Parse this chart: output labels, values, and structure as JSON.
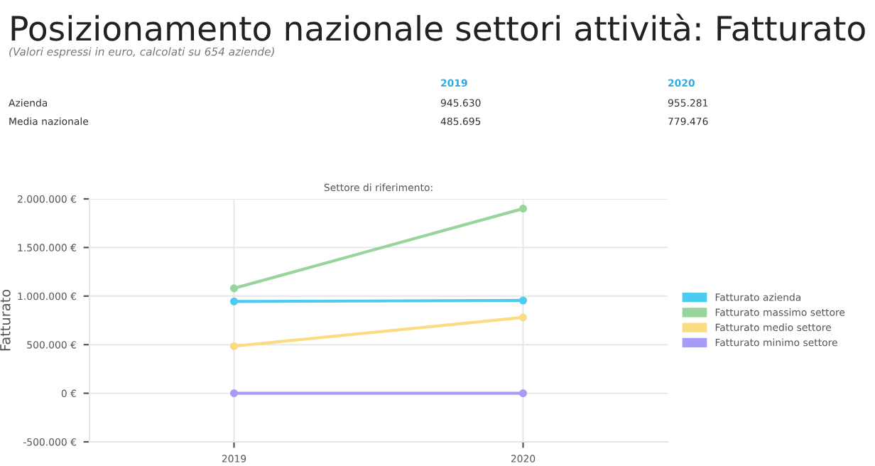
{
  "chart_data": {
    "type": "line",
    "title": "Settore di riferimento:",
    "ylabel": "Fatturato",
    "annotations": [
      "Posizionamento nazionale settori attività: Fatturato",
      "(Valori espressi in euro, calcolati su 654 aziende)",
      "Azienda",
      "945.630",
      "955.281",
      "Media nazionale",
      "485.695",
      "779.476"
    ],
    "categories": [
      "2019",
      "2020"
    ],
    "series": [
      {
        "name": "Fatturato azienda",
        "color": "#4bcbf0",
        "values": [
          945000,
          955000
        ]
      },
      {
        "name": "Fatturato massimo settore",
        "color": "#98d59c",
        "values": [
          1080000,
          1900000
        ]
      },
      {
        "name": "Fatturato medio settore",
        "color": "#fbdc83",
        "values": [
          485000,
          780000
        ]
      },
      {
        "name": "Fatturato minimo settore",
        "color": "#a79cf5",
        "values": [
          0,
          0
        ]
      }
    ],
    "ylim": [
      -500000,
      2000000
    ],
    "yticks": [
      {
        "value": -500000,
        "label": "-500.000 €"
      },
      {
        "value": 0,
        "label": "0 €"
      },
      {
        "value": 500000,
        "label": "500.000 €"
      },
      {
        "value": 1000000,
        "label": "1.000.000 €"
      },
      {
        "value": 1500000,
        "label": "1.500.000 €"
      },
      {
        "value": 2000000,
        "label": "2.000.000 €"
      }
    ],
    "grid": true,
    "legend": "right",
    "marker": "circle",
    "line_style": "solid"
  }
}
